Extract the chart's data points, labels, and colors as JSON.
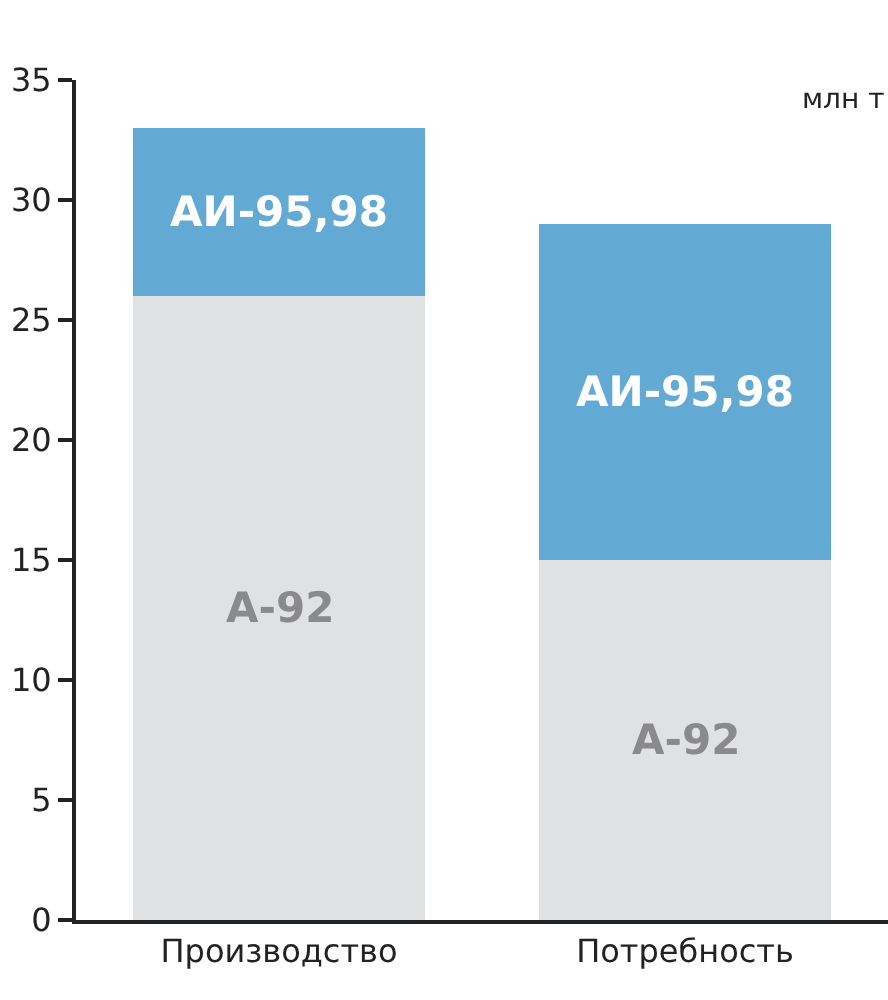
{
  "chart_data": {
    "type": "bar",
    "stacked": true,
    "ylabel": "млн т",
    "categories": [
      "Производство",
      "Потребность"
    ],
    "series": [
      {
        "name": "А-92",
        "color": "#e0e1e3",
        "values": [
          26,
          15
        ]
      },
      {
        "name": "АИ-95,98",
        "color": "#62aad3",
        "values": [
          7,
          14
        ]
      }
    ],
    "ylim": [
      0,
      35
    ],
    "yticks": [
      0,
      5,
      10,
      15,
      20,
      25,
      30,
      35
    ],
    "legend": false
  }
}
